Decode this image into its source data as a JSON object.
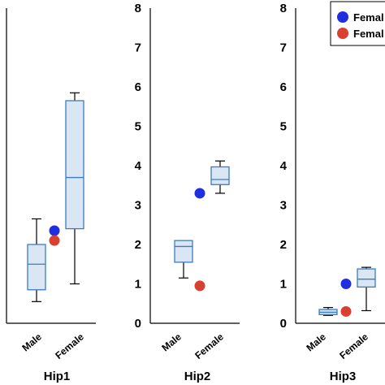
{
  "chart_data": [
    {
      "type": "box",
      "title": "Hip1",
      "categories": [
        "Male",
        "Female"
      ],
      "boxes": [
        {
          "category": "Male",
          "min": 0.55,
          "q1": 0.85,
          "median": 1.5,
          "q3": 2.0,
          "max": 2.65
        },
        {
          "category": "Female",
          "min": 1.0,
          "q1": 2.4,
          "median": 3.7,
          "q3": 5.65,
          "max": 5.85
        }
      ],
      "points": [
        {
          "series": "Female-ref",
          "x": 1,
          "y": 2.35
        },
        {
          "series": "Male-ref",
          "x": 1,
          "y": 2.1
        }
      ],
      "ylim": [
        0,
        8
      ],
      "yticks": [
        0,
        1,
        2,
        3,
        4,
        5,
        6,
        7,
        8
      ],
      "show_yticks": false
    },
    {
      "type": "box",
      "title": "Hip2",
      "categories": [
        "Male",
        "Female"
      ],
      "boxes": [
        {
          "category": "Male",
          "min": 1.15,
          "q1": 1.55,
          "median": 1.95,
          "q3": 2.1,
          "max": 2.1
        },
        {
          "category": "Female",
          "min": 3.3,
          "q1": 3.52,
          "median": 3.65,
          "q3": 3.97,
          "max": 4.12
        }
      ],
      "points": [
        {
          "series": "Female-ref",
          "x": 1,
          "y": 3.3
        },
        {
          "series": "Male-ref",
          "x": 1,
          "y": 0.95
        }
      ],
      "ylim": [
        0,
        8
      ],
      "yticks": [
        0,
        1,
        2,
        3,
        4,
        5,
        6,
        7,
        8
      ],
      "show_yticks": true
    },
    {
      "type": "box",
      "title": "Hip3",
      "categories": [
        "Male",
        "Female"
      ],
      "boxes": [
        {
          "category": "Male",
          "min": 0.2,
          "q1": 0.22,
          "median": 0.28,
          "q3": 0.35,
          "max": 0.4
        },
        {
          "category": "Female",
          "min": 0.32,
          "q1": 0.92,
          "median": 1.12,
          "q3": 1.38,
          "max": 1.42
        }
      ],
      "points": [
        {
          "series": "Female-ref",
          "x": 1,
          "y": 1.0
        },
        {
          "series": "Male-ref",
          "x": 1,
          "y": 0.3
        }
      ],
      "ylim": [
        0,
        8
      ],
      "yticks": [
        0,
        1,
        2,
        3,
        4,
        5,
        6,
        7,
        8
      ],
      "show_yticks": true
    }
  ],
  "legend": {
    "placement": "top-right",
    "entries": [
      {
        "label": "Femal",
        "color": "#1f2fe0"
      },
      {
        "label": "Femal",
        "color": "#d94030"
      }
    ]
  },
  "colors": {
    "box_fill": "#dbe6f5",
    "box_stroke": "#3a7cc0",
    "whisker": "#000000",
    "axis": "#000000"
  }
}
